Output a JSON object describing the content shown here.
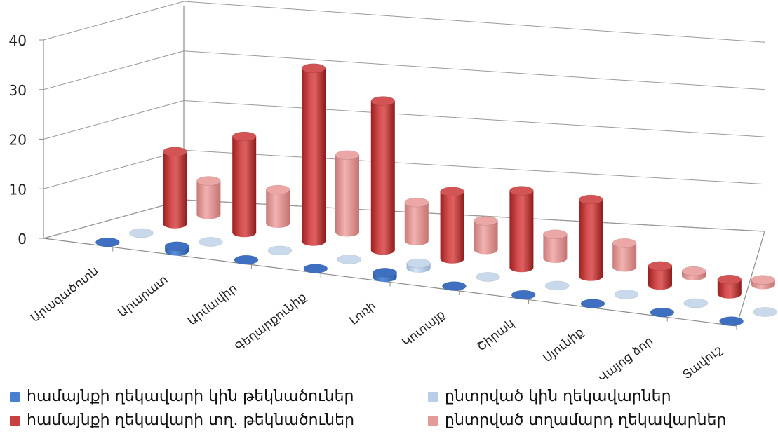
{
  "chart_data": {
    "type": "bar",
    "subtype": "3d-cylinder",
    "categories": [
      "Արագածոտն",
      "Արարատ",
      "Արմավիր",
      "Գեղարքունիք",
      "Լոռի",
      "Կոտայք",
      "Շիրակ",
      "Սյունիք",
      "Վայոց ձոր",
      "Տավուշ"
    ],
    "series": [
      {
        "name": "համայնքի ղեկավարի կին թեկնածուներ",
        "color": "#4a7fd0",
        "values": [
          0,
          1,
          0,
          0,
          1,
          0,
          0,
          0,
          0,
          0
        ]
      },
      {
        "name": "ընտրված կին ղեկավարներ",
        "color": "#b9cde6",
        "values": [
          0,
          0,
          0,
          0,
          1,
          0,
          0,
          0,
          0,
          0
        ]
      },
      {
        "name": "համայնքի ղեկավարի տղ. թեկնածուներ",
        "color": "#c84040",
        "values": [
          15,
          20,
          36,
          31,
          14,
          16,
          16,
          4,
          3,
          8
        ]
      },
      {
        "name": "ընտրված տղամարդ ղեկավարներ",
        "color": "#e39a99",
        "values": [
          7,
          7,
          16,
          8,
          6,
          5,
          5,
          1,
          1,
          2
        ]
      }
    ],
    "yticks": [
      "0",
      "10",
      "20",
      "30",
      "40"
    ],
    "ylim": [
      0,
      40
    ],
    "grid": true,
    "legend_position": "bottom"
  }
}
